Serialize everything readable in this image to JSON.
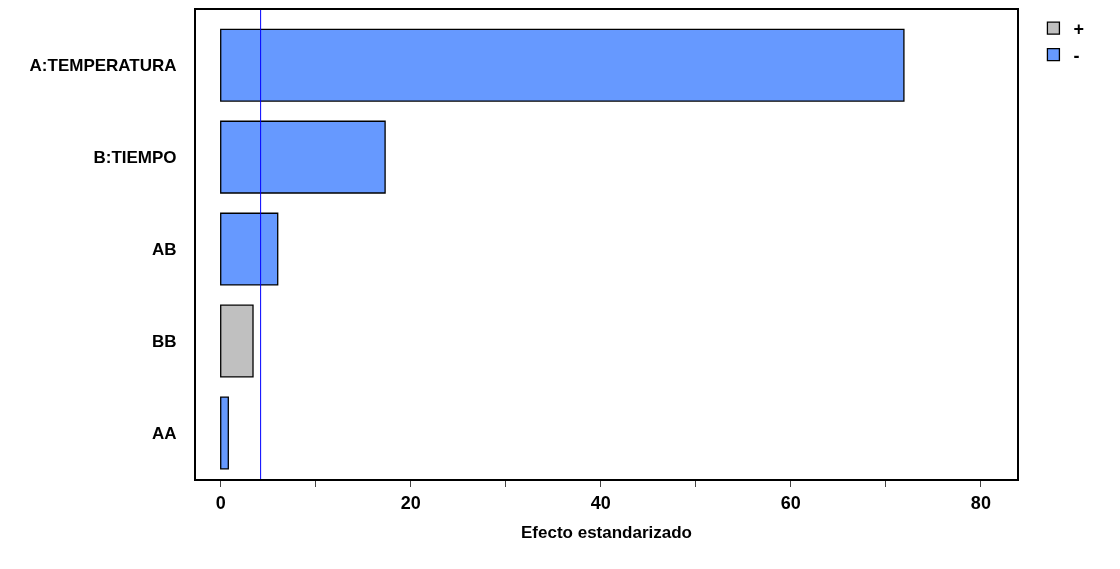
{
  "chart_data": {
    "type": "bar",
    "orientation": "horizontal",
    "xlabel": "Efecto estandarizado",
    "categories": [
      "A:TEMPERATURA",
      "B:TIEMPO",
      "AB",
      "BB",
      "AA"
    ],
    "series": [
      {
        "name": "+",
        "color": "#c0c0c0",
        "values": [
          null,
          null,
          null,
          3.4,
          null
        ]
      },
      {
        "name": "-",
        "color": "#6699ff",
        "values": [
          71.9,
          17.3,
          6.0,
          null,
          0.8
        ]
      }
    ],
    "xlim": [
      -2.6,
      83.8
    ],
    "xticks": [
      0,
      {
        "value": 10,
        "label": null
      },
      20,
      {
        "value": 30,
        "label": null
      },
      40,
      {
        "value": 50,
        "label": null
      },
      60,
      {
        "value": 70,
        "label": null
      },
      80
    ],
    "ref_lines": [
      {
        "axis": "x",
        "value": 4.2,
        "color": "#0000ff"
      }
    ],
    "legend": "top right"
  }
}
